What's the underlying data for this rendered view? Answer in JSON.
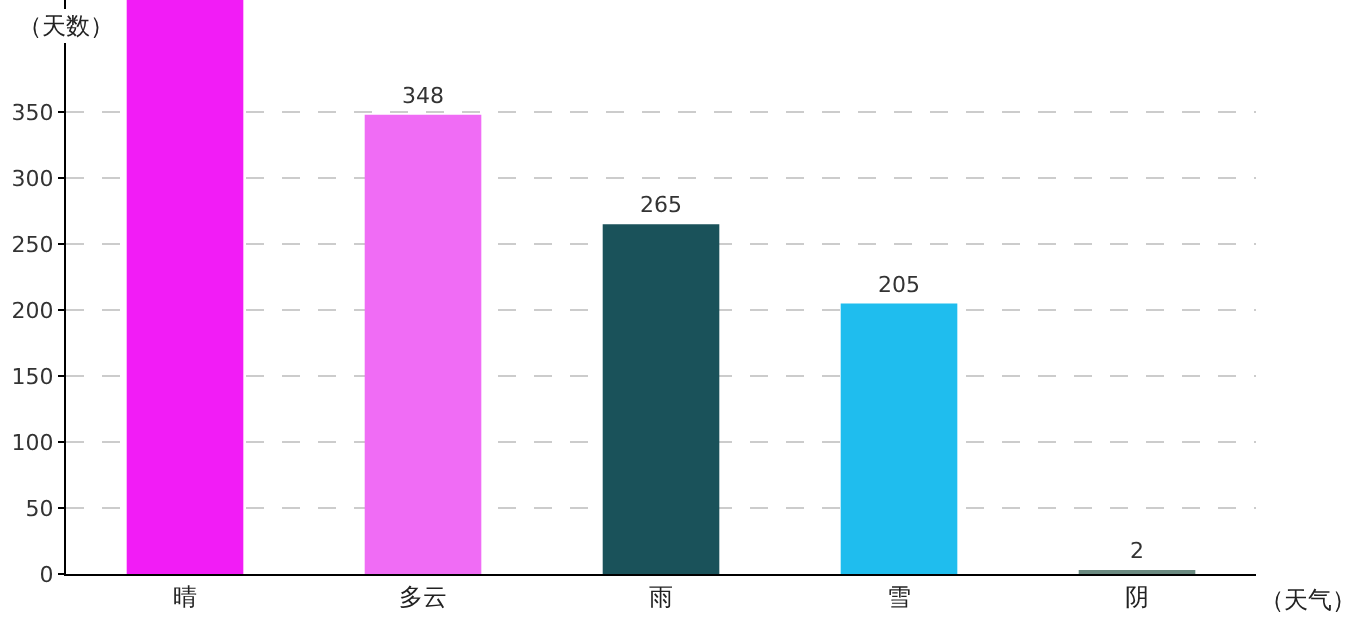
{
  "chart_data": {
    "type": "bar",
    "ylabel": "（天数）",
    "xlabel": "（天气）",
    "categories": [
      "晴",
      "多云",
      "雨",
      "雪",
      "阴"
    ],
    "values": [
      435,
      348,
      265,
      205,
      2
    ],
    "value_labels": [
      null,
      "348",
      "265",
      "205",
      "2"
    ],
    "colors": [
      "#f21cf6",
      "#f06cf5",
      "#1a525a",
      "#1fbdee",
      "#6a8a80"
    ],
    "ylim": [
      0,
      435
    ],
    "yticks": [
      0,
      50,
      100,
      150,
      200,
      250,
      300,
      350
    ],
    "grid": "y"
  }
}
